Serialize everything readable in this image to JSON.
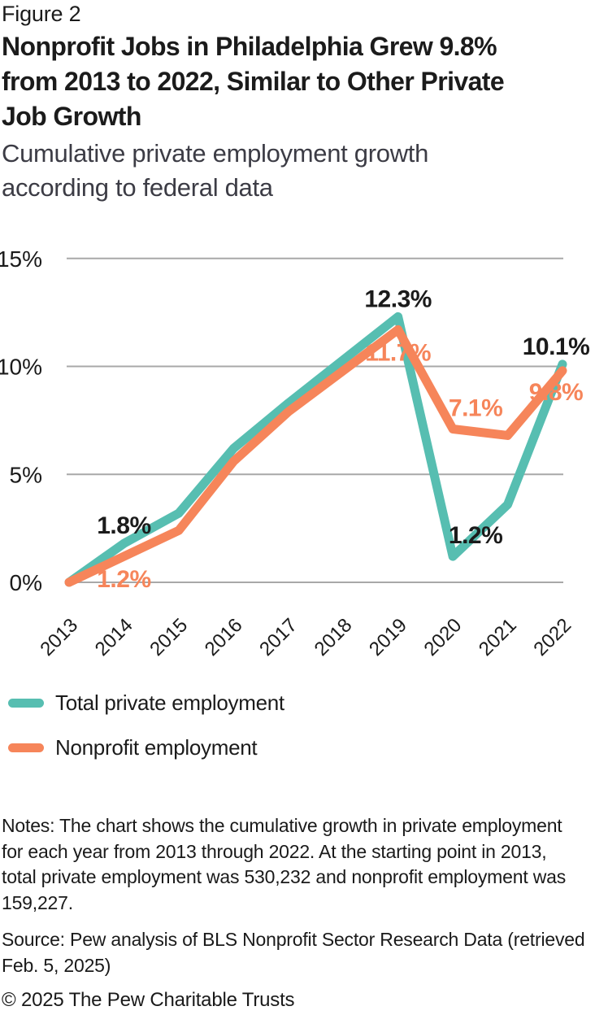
{
  "figure_label": "Figure 2",
  "title_lines": [
    "Nonprofit Jobs in Philadelphia Grew 9.8%",
    "from 2013 to 2022, Similar to Other Private",
    "Job Growth"
  ],
  "subtitle_lines": [
    "Cumulative private employment growth",
    "according to federal data"
  ],
  "colors": {
    "total_private_line": "#57beb1",
    "nonprofit_line": "#f6855a",
    "gridline": "#a8a8a8",
    "text": "#1b1b1b"
  },
  "chart_data": {
    "type": "line",
    "x": [
      "2013",
      "2014",
      "2015",
      "2016",
      "2017",
      "2018",
      "2019",
      "2020",
      "2021",
      "2022"
    ],
    "series": [
      {
        "name": "Total private employment",
        "color": "#57beb1",
        "values": [
          0,
          1.8,
          3.2,
          6.2,
          8.3,
          10.3,
          12.3,
          1.2,
          3.6,
          10.1
        ]
      },
      {
        "name": "Nonprofit employment",
        "color": "#f6855a",
        "values": [
          0,
          1.2,
          2.4,
          5.6,
          7.9,
          9.8,
          11.7,
          7.1,
          6.8,
          9.8
        ]
      }
    ],
    "y_ticks": [
      {
        "value": 0,
        "label": "0%"
      },
      {
        "value": 5,
        "label": "5%"
      },
      {
        "value": 10,
        "label": "10%"
      },
      {
        "value": 15,
        "label": "15%"
      }
    ],
    "ylim": [
      0,
      15
    ],
    "grid": true,
    "legend_position": "bottom-left",
    "annotations": [
      {
        "x": "2014",
        "series": 0,
        "value": 1.8,
        "text": "1.8%",
        "placement": "above",
        "color": "#1b1b1b"
      },
      {
        "x": "2014",
        "series": 1,
        "value": 1.2,
        "text": "1.2%",
        "placement": "below",
        "color": "#f6855a"
      },
      {
        "x": "2019",
        "series": 0,
        "value": 12.3,
        "text": "12.3%",
        "placement": "above",
        "color": "#1b1b1b"
      },
      {
        "x": "2019",
        "series": 1,
        "value": 11.7,
        "text": "11.7%",
        "placement": "below",
        "color": "#f6855a"
      },
      {
        "x": "2020",
        "series": 1,
        "value": 7.1,
        "text": "7.1%",
        "placement": "above-right",
        "color": "#f6855a"
      },
      {
        "x": "2020",
        "series": 0,
        "value": 1.2,
        "text": "1.2%",
        "placement": "above-right",
        "color": "#1b1b1b"
      },
      {
        "x": "2022",
        "series": 0,
        "value": 10.1,
        "text": "10.1%",
        "placement": "above-left",
        "color": "#1b1b1b"
      },
      {
        "x": "2022",
        "series": 1,
        "value": 9.8,
        "text": "9.8%",
        "placement": "below-left",
        "color": "#f6855a"
      }
    ]
  },
  "legend": {
    "items": [
      {
        "label": "Total private employment",
        "color": "#57beb1"
      },
      {
        "label": "Nonprofit employment",
        "color": "#f6855a"
      }
    ]
  },
  "notes_lines": [
    "Notes: The chart shows the cumulative growth in private employment",
    "for each year from 2013 through 2022. At the starting point in 2013,",
    "total private employment was 530,232 and nonprofit employment was",
    "159,227."
  ],
  "source_lines": [
    "Source: Pew analysis of BLS Nonprofit Sector Research Data (retrieved",
    "Feb. 5, 2025)"
  ],
  "copyright": "© 2025 The Pew Charitable Trusts"
}
